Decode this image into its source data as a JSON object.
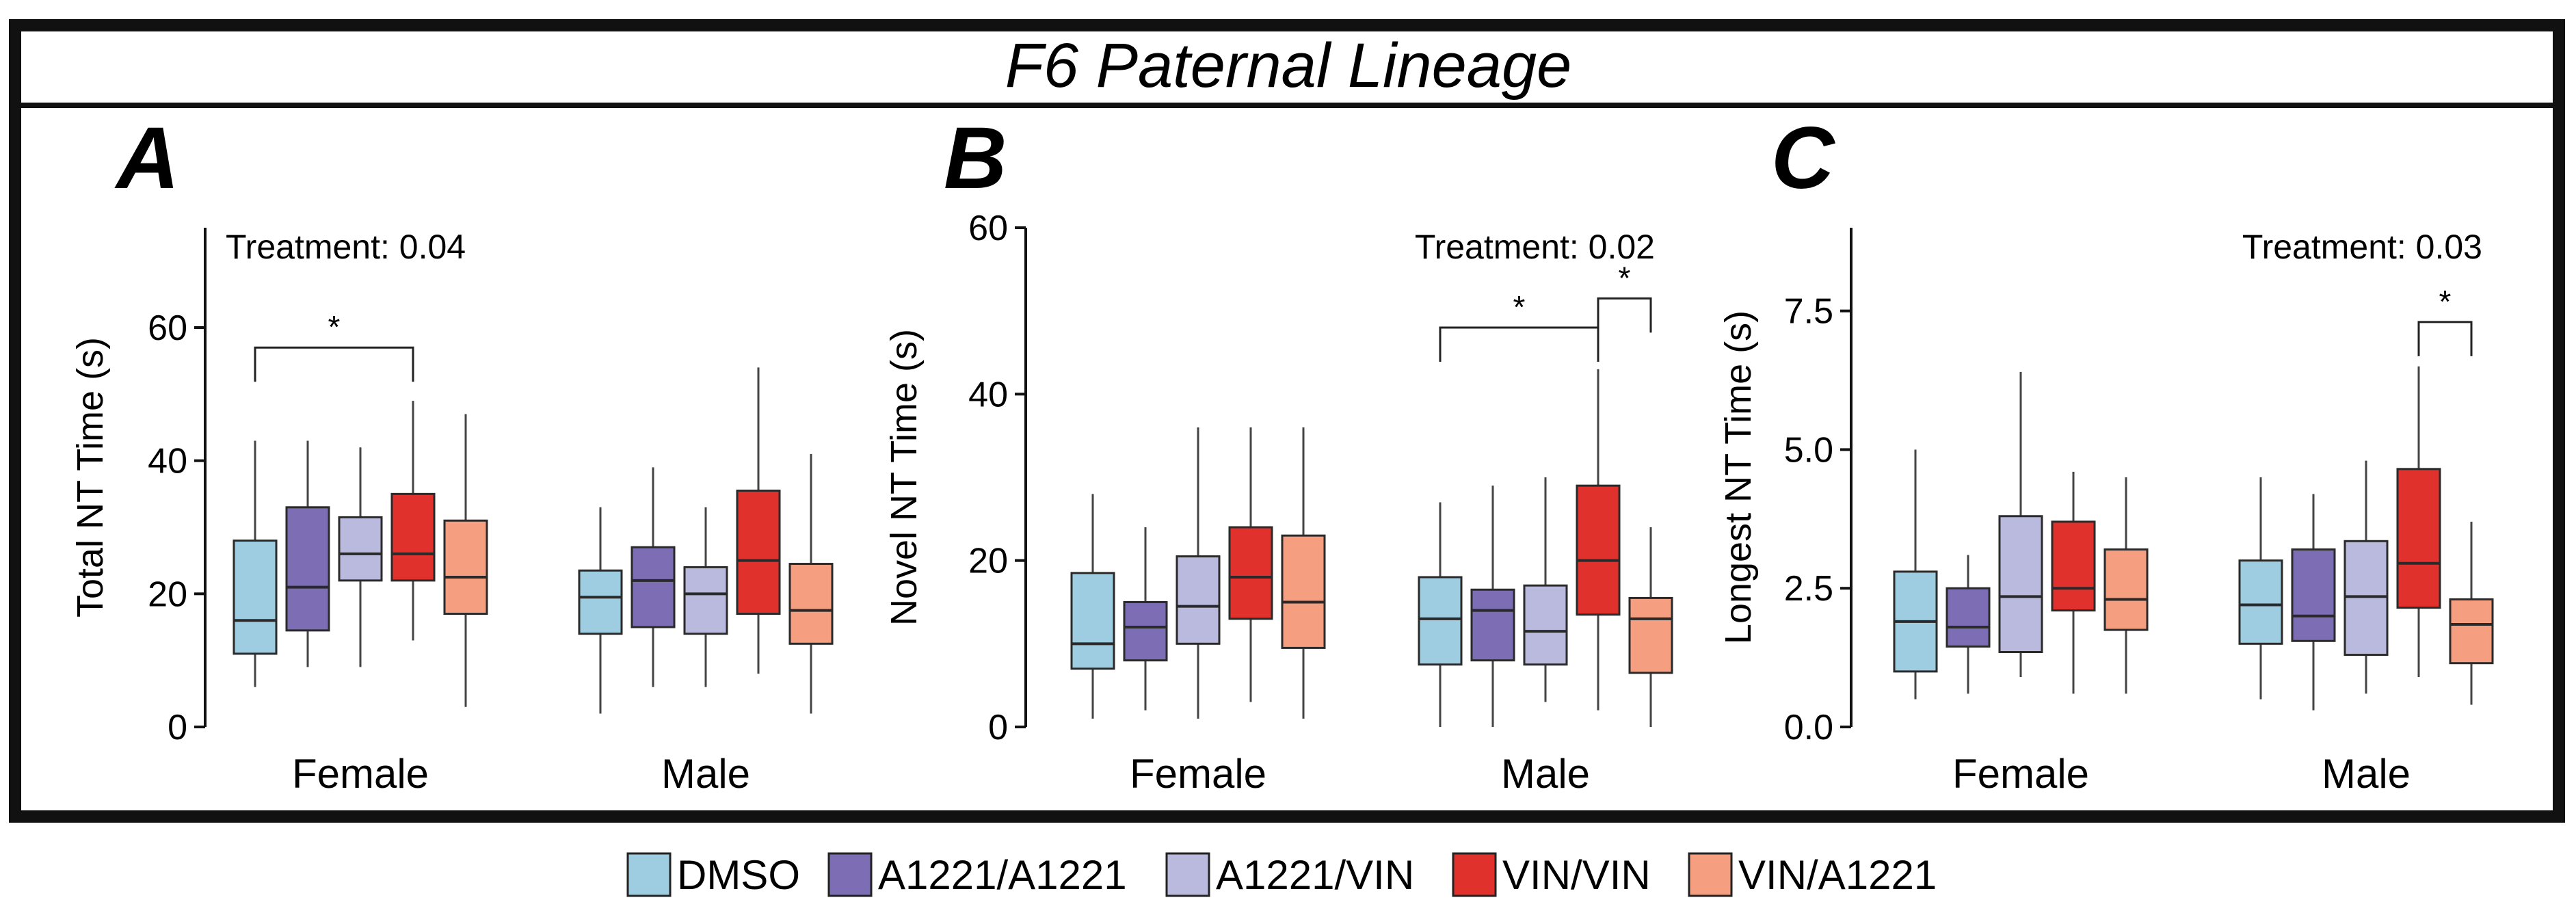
{
  "figure_title": "F6 Paternal Lineage",
  "colors": {
    "DMSO": "#9ecde1",
    "A1221/A1221": "#7c6db5",
    "A1221/VIN": "#b9bade",
    "VIN/VIN": "#e0312c",
    "VIN/A1221": "#f59e80",
    "frame": "#111111",
    "whisker": "#333333"
  },
  "legend": [
    "DMSO",
    "A1221/A1221",
    "A1221/VIN",
    "VIN/VIN",
    "VIN/A1221"
  ],
  "chart_data": [
    {
      "type": "box",
      "panel_label": "A",
      "ylabel": "Total NT Time (s)",
      "ylim": [
        0,
        75
      ],
      "yticks": [
        0,
        20,
        40,
        60
      ],
      "ytick_labels": [
        "0",
        "20",
        "40",
        "60"
      ],
      "treatment_text": "Treatment: 0.04",
      "treatment_position": "top-left",
      "categories": [
        "Female",
        "Male"
      ],
      "series": [
        "DMSO",
        "A1221/A1221",
        "A1221/VIN",
        "VIN/VIN",
        "VIN/A1221"
      ],
      "boxes": [
        [
          {
            "min": 6,
            "q1": 11,
            "median": 16,
            "q3": 28,
            "max": 43
          },
          {
            "min": 9,
            "q1": 14.5,
            "median": 21,
            "q3": 33,
            "max": 43
          },
          {
            "min": 9,
            "q1": 22,
            "median": 26,
            "q3": 31.5,
            "max": 42
          },
          {
            "min": 13,
            "q1": 22,
            "median": 26,
            "q3": 35,
            "max": 49
          },
          {
            "min": 3,
            "q1": 17,
            "median": 22.5,
            "q3": 31,
            "max": 47
          }
        ],
        [
          {
            "min": 2,
            "q1": 14,
            "median": 19.5,
            "q3": 23.5,
            "max": 33
          },
          {
            "min": 6,
            "q1": 15,
            "median": 22,
            "q3": 27,
            "max": 39
          },
          {
            "min": 6,
            "q1": 14,
            "median": 20,
            "q3": 24,
            "max": 33
          },
          {
            "min": 8,
            "q1": 17,
            "median": 25,
            "q3": 35.5,
            "max": 54
          },
          {
            "min": 2,
            "q1": 12.5,
            "median": 17.5,
            "q3": 24.5,
            "max": 41
          }
        ]
      ],
      "significance": [
        {
          "from": [
            0,
            0
          ],
          "to": [
            0,
            3
          ],
          "y": 57,
          "label": "*"
        }
      ]
    },
    {
      "type": "box",
      "panel_label": "B",
      "ylabel": "Novel NT Time (s)",
      "ylim": [
        0,
        60
      ],
      "yticks": [
        0,
        20,
        40,
        60
      ],
      "ytick_labels": [
        "0",
        "20",
        "40",
        "60"
      ],
      "treatment_text": "Treatment: 0.02",
      "treatment_position": "top-right",
      "categories": [
        "Female",
        "Male"
      ],
      "series": [
        "DMSO",
        "A1221/A1221",
        "A1221/VIN",
        "VIN/VIN",
        "VIN/A1221"
      ],
      "boxes": [
        [
          {
            "min": 1,
            "q1": 7,
            "median": 10,
            "q3": 18.5,
            "max": 28
          },
          {
            "min": 2,
            "q1": 8,
            "median": 12,
            "q3": 15,
            "max": 24
          },
          {
            "min": 1,
            "q1": 10,
            "median": 14.5,
            "q3": 20.5,
            "max": 36
          },
          {
            "min": 3,
            "q1": 13,
            "median": 18,
            "q3": 24,
            "max": 36
          },
          {
            "min": 1,
            "q1": 9.5,
            "median": 15,
            "q3": 23,
            "max": 36
          }
        ],
        [
          {
            "min": 0,
            "q1": 7.5,
            "median": 13,
            "q3": 18,
            "max": 27
          },
          {
            "min": 0,
            "q1": 8,
            "median": 14,
            "q3": 16.5,
            "max": 29
          },
          {
            "min": 3,
            "q1": 7.5,
            "median": 11.5,
            "q3": 17,
            "max": 30
          },
          {
            "min": 2,
            "q1": 13.5,
            "median": 20,
            "q3": 29,
            "max": 43
          },
          {
            "min": 0,
            "q1": 6.5,
            "median": 13,
            "q3": 15.5,
            "max": 24
          }
        ]
      ],
      "significance": [
        {
          "from": [
            1,
            0
          ],
          "to": [
            1,
            3
          ],
          "y": 48,
          "label": "*"
        },
        {
          "from": [
            1,
            3
          ],
          "to": [
            1,
            4
          ],
          "y": 51.5,
          "label": "*"
        }
      ]
    },
    {
      "type": "box",
      "panel_label": "C",
      "ylabel": "Longest NT Time (s)",
      "ylim": [
        0,
        9
      ],
      "yticks": [
        0,
        2.5,
        5,
        7.5
      ],
      "ytick_labels": [
        "0.0",
        "2.5",
        "5.0",
        "7.5"
      ],
      "treatment_text": "Treatment: 0.03",
      "treatment_position": "top-right",
      "categories": [
        "Female",
        "Male"
      ],
      "series": [
        "DMSO",
        "A1221/A1221",
        "A1221/VIN",
        "VIN/VIN",
        "VIN/A1221"
      ],
      "boxes": [
        [
          {
            "min": 0.5,
            "q1": 1,
            "median": 1.9,
            "q3": 2.8,
            "max": 5
          },
          {
            "min": 0.6,
            "q1": 1.45,
            "median": 1.8,
            "q3": 2.5,
            "max": 3.1
          },
          {
            "min": 0.9,
            "q1": 1.35,
            "median": 2.35,
            "q3": 3.8,
            "max": 6.4
          },
          {
            "min": 0.6,
            "q1": 2.1,
            "median": 2.5,
            "q3": 3.7,
            "max": 4.6
          },
          {
            "min": 0.6,
            "q1": 1.75,
            "median": 2.3,
            "q3": 3.2,
            "max": 4.5
          }
        ],
        [
          {
            "min": 0.5,
            "q1": 1.5,
            "median": 2.2,
            "q3": 3,
            "max": 4.5
          },
          {
            "min": 0.3,
            "q1": 1.55,
            "median": 2,
            "q3": 3.2,
            "max": 4.2
          },
          {
            "min": 0.6,
            "q1": 1.3,
            "median": 2.35,
            "q3": 3.35,
            "max": 4.8
          },
          {
            "min": 0.9,
            "q1": 2.15,
            "median": 2.95,
            "q3": 4.65,
            "max": 6.5
          },
          {
            "min": 0.4,
            "q1": 1.15,
            "median": 1.85,
            "q3": 2.3,
            "max": 3.7
          }
        ]
      ],
      "significance": [
        {
          "from": [
            1,
            3
          ],
          "to": [
            1,
            4
          ],
          "y": 7.3,
          "label": "*"
        }
      ]
    }
  ]
}
